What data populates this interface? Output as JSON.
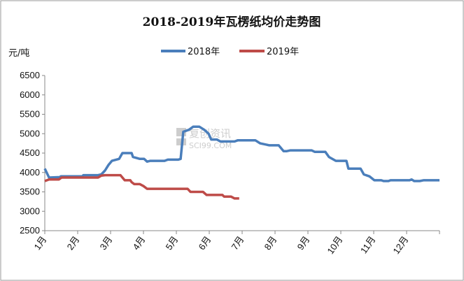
{
  "chart_data": {
    "type": "line",
    "title": "2018-2019年瓦楞纸均价走势图",
    "ylabel": "元/吨",
    "xlabel": "",
    "ylim": [
      2500,
      6500
    ],
    "yticks": [
      "6500",
      "6000",
      "5500",
      "5000",
      "4500",
      "4000",
      "3500",
      "3000",
      "2500"
    ],
    "xlim": [
      0,
      12
    ],
    "x_unit": "month (0 = start of 1月)",
    "xticks": [
      "1月",
      "2月",
      "3月",
      "4月",
      "5月",
      "6月",
      "7月",
      "8月",
      "9月",
      "10月",
      "11月",
      "12月"
    ],
    "grid": false,
    "legend_position": "top",
    "watermark": "复创资讯 SCI99.COM",
    "series": [
      {
        "name": "2018年",
        "color": "#4a7ebb",
        "points": [
          [
            0,
            4100
          ],
          [
            0.13,
            3870
          ],
          [
            0.45,
            3880
          ],
          [
            0.49,
            3900
          ],
          [
            1.15,
            3900
          ],
          [
            1.17,
            3930
          ],
          [
            1.62,
            3930
          ],
          [
            1.72,
            3950
          ],
          [
            1.83,
            4050
          ],
          [
            1.94,
            4200
          ],
          [
            2.04,
            4300
          ],
          [
            2.26,
            4350
          ],
          [
            2.36,
            4500
          ],
          [
            2.64,
            4500
          ],
          [
            2.68,
            4400
          ],
          [
            2.89,
            4350
          ],
          [
            3.02,
            4350
          ],
          [
            3.11,
            4280
          ],
          [
            3.21,
            4300
          ],
          [
            3.64,
            4300
          ],
          [
            3.74,
            4330
          ],
          [
            4.06,
            4330
          ],
          [
            4.13,
            4350
          ],
          [
            4.21,
            5050
          ],
          [
            4.38,
            5100
          ],
          [
            4.51,
            5180
          ],
          [
            4.7,
            5180
          ],
          [
            4.85,
            5100
          ],
          [
            4.98,
            5000
          ],
          [
            5.06,
            4850
          ],
          [
            5.23,
            4850
          ],
          [
            5.34,
            4800
          ],
          [
            5.77,
            4800
          ],
          [
            5.87,
            4830
          ],
          [
            6.4,
            4830
          ],
          [
            6.55,
            4750
          ],
          [
            6.83,
            4700
          ],
          [
            7.11,
            4700
          ],
          [
            7.26,
            4550
          ],
          [
            7.36,
            4550
          ],
          [
            7.47,
            4570
          ],
          [
            8.11,
            4570
          ],
          [
            8.21,
            4530
          ],
          [
            8.53,
            4530
          ],
          [
            8.64,
            4400
          ],
          [
            8.85,
            4300
          ],
          [
            9.17,
            4300
          ],
          [
            9.23,
            4100
          ],
          [
            9.6,
            4100
          ],
          [
            9.7,
            3950
          ],
          [
            9.87,
            3900
          ],
          [
            10.02,
            3800
          ],
          [
            10.23,
            3800
          ],
          [
            10.3,
            3780
          ],
          [
            10.45,
            3780
          ],
          [
            10.51,
            3800
          ],
          [
            11.09,
            3800
          ],
          [
            11.15,
            3820
          ],
          [
            11.23,
            3780
          ],
          [
            11.4,
            3780
          ],
          [
            11.51,
            3800
          ],
          [
            12,
            3800
          ]
        ]
      },
      {
        "name": "2019年",
        "color": "#be4b48",
        "points": [
          [
            0,
            3780
          ],
          [
            0.13,
            3820
          ],
          [
            0.43,
            3820
          ],
          [
            0.51,
            3870
          ],
          [
            1.62,
            3870
          ],
          [
            1.72,
            3920
          ],
          [
            1.83,
            3930
          ],
          [
            2.3,
            3930
          ],
          [
            2.43,
            3800
          ],
          [
            2.6,
            3800
          ],
          [
            2.64,
            3750
          ],
          [
            2.72,
            3700
          ],
          [
            2.89,
            3700
          ],
          [
            3.0,
            3650
          ],
          [
            3.11,
            3580
          ],
          [
            4.34,
            3580
          ],
          [
            4.43,
            3500
          ],
          [
            4.81,
            3500
          ],
          [
            4.92,
            3420
          ],
          [
            5.4,
            3420
          ],
          [
            5.45,
            3380
          ],
          [
            5.66,
            3380
          ],
          [
            5.77,
            3330
          ],
          [
            5.91,
            3330
          ]
        ]
      }
    ]
  }
}
